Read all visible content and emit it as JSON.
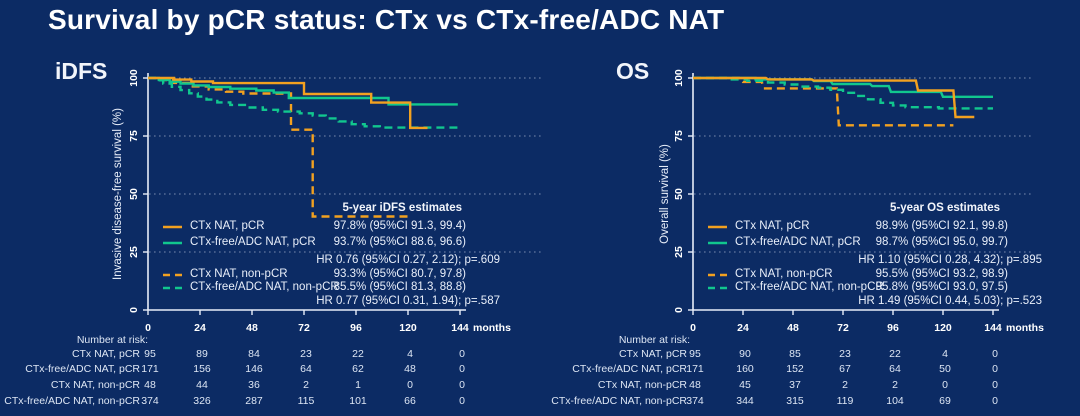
{
  "title": "Survival by pCR status: CTx vs CTx-free/ADC NAT",
  "colors": {
    "background": "#0c2b64",
    "orange": "#f2a120",
    "green": "#11c78e",
    "axis": "#e8eef9",
    "grid": "#cfd9ec",
    "text": "#ffffff"
  },
  "chart_data": [
    {
      "type": "line",
      "subtype": "kaplan-meier-step",
      "panel_label": "iDFS",
      "ylabel": "Invasive disease-free survival (%)",
      "x_unit": "months",
      "x_ticks": [
        0,
        24,
        48,
        72,
        96,
        120,
        144
      ],
      "y_ticks": [
        100,
        75,
        50,
        25,
        0
      ],
      "xlim": [
        0,
        144
      ],
      "ylim": [
        0,
        100
      ],
      "grid": "dotted-horizontal",
      "legend_position": "inside-lower-left",
      "estimates_title": "5-year iDFS estimates",
      "series": [
        {
          "name": "CTx NAT, pCR",
          "color": "#f2a120",
          "dash": "solid",
          "estimate": "97.8% (95%CI 91.3, 99.4)",
          "points": [
            [
              0,
              100
            ],
            [
              12,
              100
            ],
            [
              12,
              99.3
            ],
            [
              20,
              99.3
            ],
            [
              20,
              98.5
            ],
            [
              30,
              98.5
            ],
            [
              30,
              97.8
            ],
            [
              72,
              97.8
            ],
            [
              72,
              93.1
            ],
            [
              103,
              93.1
            ],
            [
              103,
              89.4
            ],
            [
              121,
              89.4
            ],
            [
              121,
              78.5
            ],
            [
              129,
              78.5
            ]
          ]
        },
        {
          "name": "CTx-free/ADC NAT, pCR",
          "color": "#11c78e",
          "dash": "solid",
          "estimate": "93.7% (95%CI 88.6, 96.6)",
          "points": [
            [
              0,
              100
            ],
            [
              5,
              100
            ],
            [
              5,
              99.2
            ],
            [
              10,
              99.2
            ],
            [
              10,
              98.4
            ],
            [
              15,
              98.4
            ],
            [
              15,
              97.6
            ],
            [
              21,
              97.6
            ],
            [
              21,
              96.8
            ],
            [
              28,
              96.8
            ],
            [
              28,
              96.1
            ],
            [
              38,
              96.1
            ],
            [
              38,
              95.4
            ],
            [
              50,
              95.4
            ],
            [
              50,
              94.6
            ],
            [
              58,
              94.6
            ],
            [
              58,
              93.7
            ],
            [
              65,
              93.7
            ],
            [
              65,
              91.4
            ],
            [
              111,
              91.4
            ],
            [
              111,
              88.6
            ],
            [
              143,
              88.6
            ]
          ]
        },
        {
          "name": "CTx NAT, non-pCR",
          "color": "#f2a120",
          "dash": "dashed",
          "estimate": "93.3% (95%CI 80.7, 97.8)",
          "points": [
            [
              0,
              100
            ],
            [
              6,
              100
            ],
            [
              6,
              99.1
            ],
            [
              12,
              99.1
            ],
            [
              12,
              97.9
            ],
            [
              20,
              97.9
            ],
            [
              20,
              96.4
            ],
            [
              28,
              96.4
            ],
            [
              28,
              95.1
            ],
            [
              36,
              95.1
            ],
            [
              36,
              94.1
            ],
            [
              44,
              94.1
            ],
            [
              44,
              93.3
            ],
            [
              66,
              93.3
            ],
            [
              66,
              77.7
            ],
            [
              76,
              77.7
            ],
            [
              76,
              40.3
            ],
            [
              120,
              40.3
            ]
          ]
        },
        {
          "name": "CTx-free/ADC NAT, non-pCR",
          "color": "#11c78e",
          "dash": "dashed",
          "estimate": "85.5% (95%CI 81.3, 88.8)",
          "points": [
            [
              0,
              100
            ],
            [
              3,
              100
            ],
            [
              3,
              99
            ],
            [
              7,
              99
            ],
            [
              7,
              97.6
            ],
            [
              11,
              97.6
            ],
            [
              11,
              96.2
            ],
            [
              15,
              96.2
            ],
            [
              15,
              94.8
            ],
            [
              19,
              94.8
            ],
            [
              19,
              93.4
            ],
            [
              23,
              93.4
            ],
            [
              23,
              92
            ],
            [
              27,
              92
            ],
            [
              27,
              90.7
            ],
            [
              32,
              90.7
            ],
            [
              32,
              89.5
            ],
            [
              38,
              89.5
            ],
            [
              38,
              88.4
            ],
            [
              46,
              88.4
            ],
            [
              46,
              87.3
            ],
            [
              53,
              87.3
            ],
            [
              53,
              86.3
            ],
            [
              60,
              86.3
            ],
            [
              60,
              85.5
            ],
            [
              70,
              85.5
            ],
            [
              70,
              84.8
            ],
            [
              76,
              84.8
            ],
            [
              76,
              83.8
            ],
            [
              82,
              83.8
            ],
            [
              82,
              82.6
            ],
            [
              88,
              82.6
            ],
            [
              88,
              81.3
            ],
            [
              94,
              81.3
            ],
            [
              94,
              80.1
            ],
            [
              100,
              80.1
            ],
            [
              100,
              79.2
            ],
            [
              107,
              79.2
            ],
            [
              107,
              78.6
            ],
            [
              143,
              78.6
            ]
          ]
        }
      ],
      "hr_rows": [
        "HR 0.76 (95%CI 0.27, 2.12); p=.609",
        "HR 0.77 (95%CI 0.31, 1.94); p=.587"
      ],
      "at_risk": {
        "header": "Number at risk:",
        "rows": [
          {
            "label": "CTx NAT, pCR",
            "values": [
              95,
              89,
              84,
              23,
              22,
              4,
              0
            ]
          },
          {
            "label": "CTx-free/ADC NAT, pCR",
            "values": [
              171,
              156,
              146,
              64,
              62,
              48,
              0
            ]
          },
          {
            "label": "CTx NAT, non-pCR",
            "values": [
              48,
              44,
              36,
              2,
              1,
              0,
              0
            ]
          },
          {
            "label": "CTx-free/ADC NAT, non-pCR",
            "values": [
              374,
              326,
              287,
              115,
              101,
              66,
              0
            ]
          }
        ]
      }
    },
    {
      "type": "line",
      "subtype": "kaplan-meier-step",
      "panel_label": "OS",
      "ylabel": "Overall survival (%)",
      "x_unit": "months",
      "x_ticks": [
        0,
        24,
        48,
        72,
        96,
        120,
        144
      ],
      "y_ticks": [
        100,
        75,
        50,
        25,
        0
      ],
      "xlim": [
        0,
        144
      ],
      "ylim": [
        0,
        100
      ],
      "grid": "dotted-horizontal",
      "legend_position": "inside-lower-left",
      "estimates_title": "5-year OS estimates",
      "series": [
        {
          "name": "CTx NAT, pCR",
          "color": "#f2a120",
          "dash": "solid",
          "estimate": "98.9% (95%CI 92.1, 99.8)",
          "points": [
            [
              0,
              100
            ],
            [
              35,
              100
            ],
            [
              36,
              99.4
            ],
            [
              57,
              99.4
            ],
            [
              58,
              98.9
            ],
            [
              107,
              98.9
            ],
            [
              108,
              94.6
            ],
            [
              125,
              94.6
            ],
            [
              126,
              83.2
            ],
            [
              135,
              83.2
            ]
          ]
        },
        {
          "name": "CTx-free/ADC NAT, pCR",
          "color": "#11c78e",
          "dash": "solid",
          "estimate": "98.7% (95%CI 95.0, 99.7)",
          "points": [
            [
              0,
              100
            ],
            [
              30,
              100
            ],
            [
              30,
              99.4
            ],
            [
              57,
              99.4
            ],
            [
              58,
              98.7
            ],
            [
              66,
              98.7
            ],
            [
              67,
              97.4
            ],
            [
              85,
              97.4
            ],
            [
              86,
              96.5
            ],
            [
              94,
              96.5
            ],
            [
              95,
              94
            ],
            [
              119,
              94
            ],
            [
              120,
              91.9
            ],
            [
              144,
              91.9
            ]
          ]
        },
        {
          "name": "CTx NAT, non-pCR",
          "color": "#f2a120",
          "dash": "dashed",
          "estimate": "95.5% (95%CI 93.2, 98.9)",
          "points": [
            [
              0,
              100
            ],
            [
              23,
              100
            ],
            [
              24,
              98.3
            ],
            [
              33,
              98.3
            ],
            [
              34,
              95.5
            ],
            [
              69,
              95.5
            ],
            [
              70,
              79.6
            ],
            [
              125,
              79.6
            ]
          ]
        },
        {
          "name": "CTx-free/ADC NAT, non-pCR",
          "color": "#11c78e",
          "dash": "dashed",
          "estimate": "95.8% (95%CI 93.0, 97.5)",
          "points": [
            [
              0,
              100
            ],
            [
              18,
              100
            ],
            [
              18,
              99.4
            ],
            [
              26,
              99.4
            ],
            [
              26,
              98.8
            ],
            [
              36,
              98.8
            ],
            [
              36,
              98
            ],
            [
              44,
              98
            ],
            [
              44,
              97.2
            ],
            [
              52,
              97.2
            ],
            [
              52,
              96.3
            ],
            [
              60,
              96.3
            ],
            [
              60,
              95.8
            ],
            [
              66,
              95.8
            ],
            [
              66,
              94.9
            ],
            [
              72,
              94.9
            ],
            [
              72,
              93.6
            ],
            [
              78,
              93.6
            ],
            [
              78,
              92.3
            ],
            [
              84,
              92.3
            ],
            [
              84,
              90.8
            ],
            [
              90,
              90.8
            ],
            [
              90,
              89.3
            ],
            [
              96,
              89.3
            ],
            [
              96,
              88.2
            ],
            [
              102,
              88.2
            ],
            [
              102,
              87.4
            ],
            [
              118,
              87.4
            ],
            [
              118,
              86.9
            ],
            [
              144,
              86.9
            ]
          ]
        }
      ],
      "hr_rows": [
        "HR 1.10 (95%CI 0.28, 4.32); p=.895",
        "HR 1.49 (95%CI 0.44, 5.03); p=.523"
      ],
      "at_risk": {
        "header": "Number at risk:",
        "rows": [
          {
            "label": "CTx NAT, pCR",
            "values": [
              95,
              90,
              85,
              23,
              22,
              4,
              0
            ]
          },
          {
            "label": "CTx-free/ADC NAT, pCR",
            "values": [
              171,
              160,
              152,
              67,
              64,
              50,
              0
            ]
          },
          {
            "label": "CTx NAT, non-pCR",
            "values": [
              48,
              45,
              37,
              2,
              2,
              0,
              0
            ]
          },
          {
            "label": "CTx-free/ADC NAT, non-pCR",
            "values": [
              374,
              344,
              315,
              119,
              104,
              69,
              0
            ]
          }
        ]
      }
    }
  ]
}
